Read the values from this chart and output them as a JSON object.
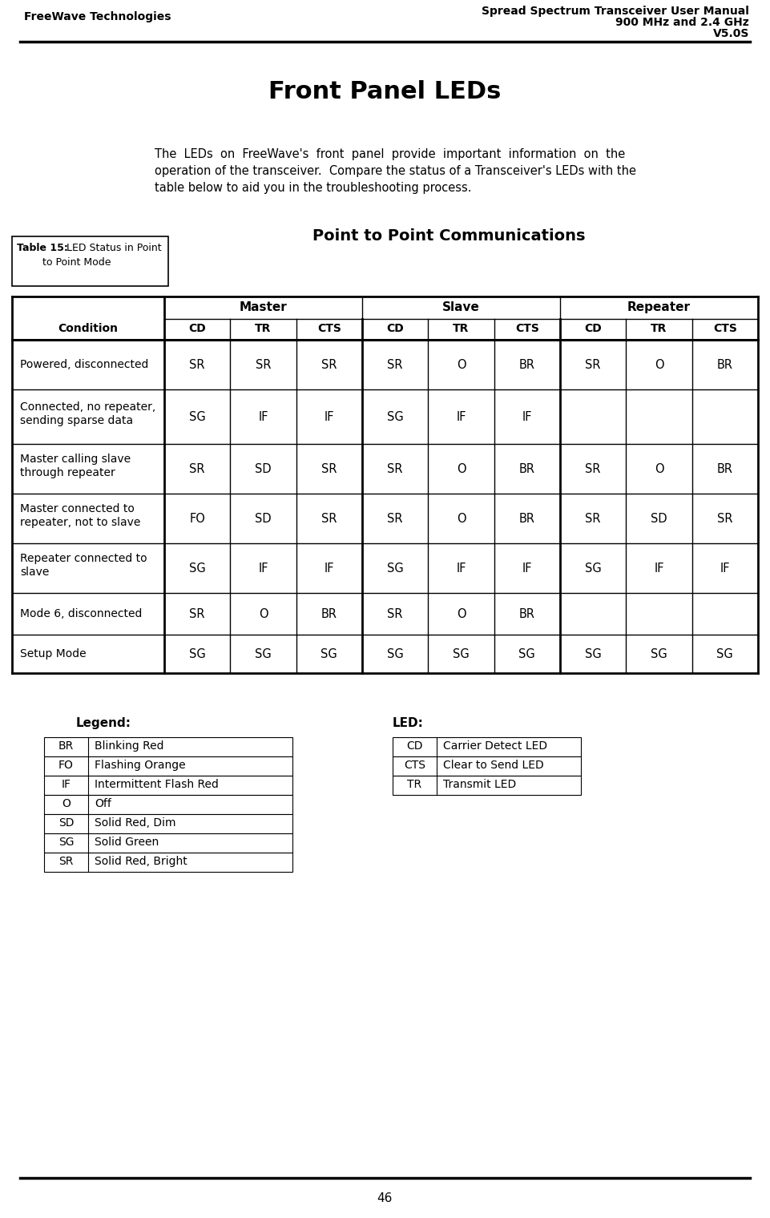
{
  "header_left": "FreeWave Technologies",
  "header_right_line1": "Spread Spectrum Transceiver User Manual",
  "header_right_line2": "900 MHz and 2.4 GHz",
  "header_right_line3": "V5.0S",
  "page_title": "Front Panel LEDs",
  "body_lines": [
    "The  LEDs  on  FreeWave's  front  panel  provide  important  information  on  the",
    "operation of the transceiver.  Compare the status of a Transceiver's LEDs with the",
    "table below to aid you in the troubleshooting process."
  ],
  "section_title": "Point to Point Communications",
  "table_caption_bold": "Table 15:",
  "table_caption_line2": "LED Status in Point",
  "table_caption_line3": "to Point Mode",
  "col_groups": [
    [
      "Master",
      1,
      3
    ],
    [
      "Slave",
      4,
      6
    ],
    [
      "Repeater",
      7,
      9
    ]
  ],
  "col_headers": [
    "Condition",
    "CD",
    "TR",
    "CTS",
    "CD",
    "TR",
    "CTS",
    "CD",
    "TR",
    "CTS"
  ],
  "table_rows": [
    [
      "Powered, disconnected",
      "SR",
      "SR",
      "SR",
      "SR",
      "O",
      "BR",
      "SR",
      "O",
      "BR"
    ],
    [
      "Connected, no repeater,\nsending sparse data",
      "SG",
      "IF",
      "IF",
      "SG",
      "IF",
      "IF",
      "",
      "",
      ""
    ],
    [
      "Master calling slave\nthrough repeater",
      "SR",
      "SD",
      "SR",
      "SR",
      "O",
      "BR",
      "SR",
      "O",
      "BR"
    ],
    [
      "Master connected to\nrepeater, not to slave",
      "FO",
      "SD",
      "SR",
      "SR",
      "O",
      "BR",
      "SR",
      "SD",
      "SR"
    ],
    [
      "Repeater connected to\nslave",
      "SG",
      "IF",
      "IF",
      "SG",
      "IF",
      "IF",
      "SG",
      "IF",
      "IF"
    ],
    [
      "Mode 6, disconnected",
      "SR",
      "O",
      "BR",
      "SR",
      "O",
      "BR",
      "",
      "",
      ""
    ],
    [
      "Setup Mode",
      "SG",
      "SG",
      "SG",
      "SG",
      "SG",
      "SG",
      "SG",
      "SG",
      "SG"
    ]
  ],
  "legend_title": "Legend:",
  "legend_rows": [
    [
      "BR",
      "Blinking Red"
    ],
    [
      "FO",
      "Flashing Orange"
    ],
    [
      "IF",
      "Intermittent Flash Red"
    ],
    [
      "O",
      "Off"
    ],
    [
      "SD",
      "Solid Red, Dim"
    ],
    [
      "SG",
      "Solid Green"
    ],
    [
      "SR",
      "Solid Red, Bright"
    ]
  ],
  "led_title": "LED:",
  "led_rows": [
    [
      "CD",
      "Carrier Detect LED"
    ],
    [
      "CTS",
      "Clear to Send LED"
    ],
    [
      "TR",
      "Transmit LED"
    ]
  ],
  "footer_text": "46",
  "bg_color": "#ffffff"
}
